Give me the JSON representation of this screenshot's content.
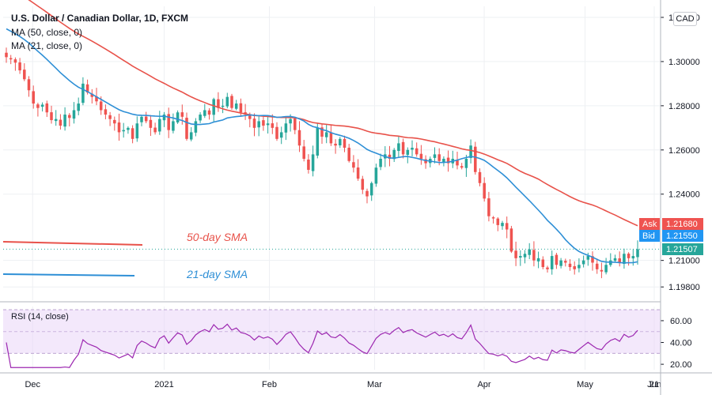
{
  "header": {
    "symbol_line": "U.S. Dollar / Canadian Dollar, 1D, FXCM",
    "ma50_legend": "MA (50, close, 0)",
    "ma21_legend": "MA (21, close, 0)",
    "currency": "CAD",
    "rsi_legend": "RSI (14, close)"
  },
  "colors": {
    "up": "#26a69a",
    "down": "#ef5350",
    "ma50": "#e8524a",
    "ma21": "#2e8fd6",
    "rsi": "#9c27b0",
    "rsi_band": "#e9d6f7",
    "bid": "#2196f3",
    "last": "#26a69a"
  },
  "chart_data": [
    {
      "type": "candlestick",
      "title": "U.S. Dollar / Canadian Dollar, 1D, FXCM",
      "x_ticks": [
        "Dec",
        "2021",
        "Feb",
        "Mar",
        "Apr",
        "May",
        "Jun",
        "21"
      ],
      "y_ticks": [
        "1.32000",
        "1.30000",
        "1.28000",
        "1.26000",
        "1.24000",
        "1.21000",
        "1.19800"
      ],
      "ylim": [
        1.192,
        1.325
      ],
      "price_tags": [
        {
          "label": "Ask",
          "value": "1.21680",
          "color": "#ef5350"
        },
        {
          "label": "Bid",
          "value": "1.21550",
          "color": "#2196f3"
        },
        {
          "label": "",
          "value": "1.21507",
          "color": "#26a69a"
        }
      ],
      "annotations": [
        {
          "text": "50-day SMA",
          "color": "#e8524a"
        },
        {
          "text": "21-day SMA",
          "color": "#2e8fd6"
        }
      ],
      "close": [
        1.302,
        1.301,
        1.2995,
        1.296,
        1.292,
        1.287,
        1.281,
        1.279,
        1.2805,
        1.277,
        1.2735,
        1.274,
        1.271,
        1.276,
        1.2745,
        1.278,
        1.281,
        1.29,
        1.286,
        1.284,
        1.282,
        1.278,
        1.276,
        1.274,
        1.272,
        1.268,
        1.269,
        1.27,
        1.265,
        1.272,
        1.275,
        1.273,
        1.27,
        1.268,
        1.274,
        1.276,
        1.269,
        1.273,
        1.277,
        1.275,
        1.265,
        1.268,
        1.273,
        1.276,
        1.278,
        1.276,
        1.283,
        1.279,
        1.28,
        1.284,
        1.279,
        1.281,
        1.277,
        1.276,
        1.274,
        1.27,
        1.273,
        1.271,
        1.272,
        1.27,
        1.265,
        1.268,
        1.272,
        1.274,
        1.269,
        1.262,
        1.256,
        1.251,
        1.258,
        1.27,
        1.266,
        1.268,
        1.263,
        1.262,
        1.265,
        1.261,
        1.255,
        1.252,
        1.247,
        1.242,
        1.239,
        1.245,
        1.252,
        1.256,
        1.258,
        1.256,
        1.26,
        1.263,
        1.258,
        1.26,
        1.261,
        1.258,
        1.256,
        1.254,
        1.256,
        1.258,
        1.255,
        1.256,
        1.254,
        1.256,
        1.253,
        1.252,
        1.256,
        1.262,
        1.25,
        1.245,
        1.238,
        1.23,
        1.229,
        1.226,
        1.227,
        1.224,
        1.214,
        1.211,
        1.212,
        1.213,
        1.215,
        1.21,
        1.211,
        1.207,
        1.206,
        1.212,
        1.208,
        1.21,
        1.209,
        1.207,
        1.206,
        1.208,
        1.21,
        1.212,
        1.209,
        1.206,
        1.205,
        1.208,
        1.21,
        1.211,
        1.209,
        1.213,
        1.211,
        1.212,
        1.2151
      ],
      "series": [
        {
          "name": "MA (50, close, 0)",
          "label": "50-day SMA"
        },
        {
          "name": "MA (21, close, 0)",
          "label": "21-day SMA"
        }
      ]
    },
    {
      "type": "line",
      "title": "RSI (14, close)",
      "y_ticks": [
        "60.00",
        "40.00",
        "20.00"
      ],
      "ylim": [
        15,
        73
      ],
      "band": [
        30,
        70
      ],
      "mid": 50
    }
  ]
}
